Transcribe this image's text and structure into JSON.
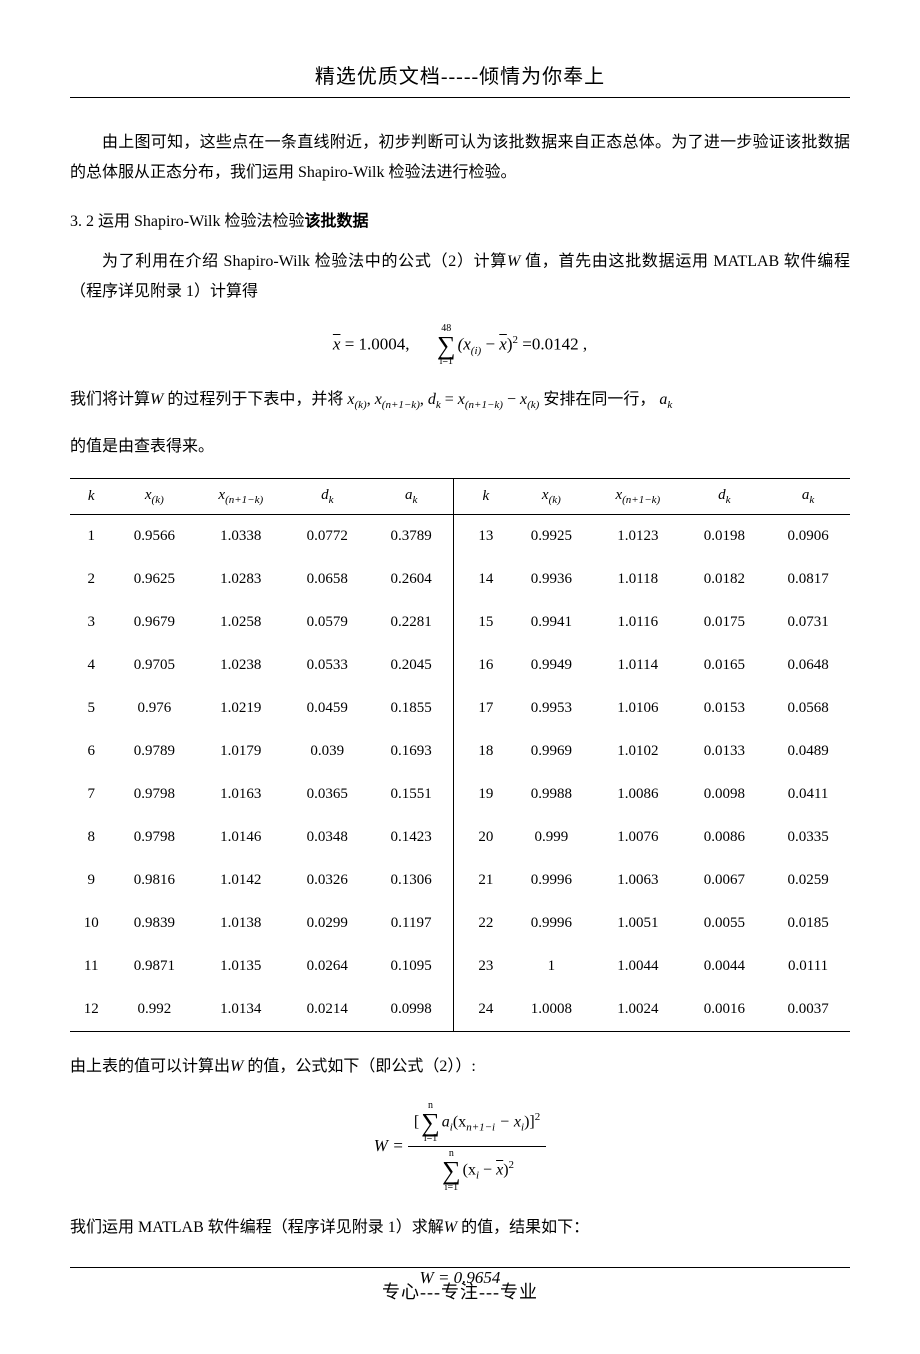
{
  "header": "精选优质文档-----倾情为你奉上",
  "footer": "专心---专注---专业",
  "para1": "由上图可知，这些点在一条直线附近，初步判断可认为该批数据来自正态总体。为了进一步验证该批数据的总体服从正态分布，我们运用 Shapiro-Wilk 检验法进行检验。",
  "section_num": "3. 2 ",
  "section_plain": "运用 Shapiro-Wilk 检验法检验",
  "section_bold": "该批数据",
  "para2a": "为了利用在介绍 Shapiro-Wilk 检验法中的公式（2）计算",
  "sym_W": "W",
  "para2b": " 值，首先由这批数据运用 MATLAB 软件编程（程序详见附录 1）计算得",
  "formula1": {
    "xbar_label": "x",
    "xbar_val": " = 1.0004,",
    "sum_upper": "48",
    "sum_lower": "i=1",
    "sum_body_open": "(x",
    "sum_body_sub": "(i)",
    "sum_body_mid": " − ",
    "sum_body_xbar": "x",
    "sum_body_close": ")",
    "sum_body_sup": "2",
    "eq_val": " =0.0142 ,"
  },
  "para3a": "我们将计算",
  "para3b": " 的过程列于下表中，并将 ",
  "inline_seq": {
    "x_k": "x",
    "x_k_sub": "(k)",
    "comma1": ", ",
    "x_n1k": "x",
    "x_n1k_sub": "(n+1−k)",
    "comma2": ", ",
    "d_k": "d",
    "d_k_sub": "k",
    "eq": " = ",
    "x_n1k2": "x",
    "x_n1k2_sub": "(n+1−k)",
    "minus": " − ",
    "x_k2": "x",
    "x_k2_sub": "(k)"
  },
  "para3c": " 安排在同一行，  ",
  "a_k": "a",
  "a_k_sub": "k",
  "para3d": "的值是由查表得来。",
  "table": {
    "headers": {
      "k": "k",
      "xk": "x",
      "xk_sub": "(k)",
      "xn1k": "x",
      "xn1k_sub": "(n+1−k)",
      "dk": "d",
      "dk_sub": "k",
      "ak": "a",
      "ak_sub": "k"
    },
    "left": [
      {
        "k": "1",
        "xk": "0.9566",
        "xn": "1.0338",
        "dk": "0.0772",
        "ak": "0.3789"
      },
      {
        "k": "2",
        "xk": "0.9625",
        "xn": "1.0283",
        "dk": "0.0658",
        "ak": "0.2604"
      },
      {
        "k": "3",
        "xk": "0.9679",
        "xn": "1.0258",
        "dk": "0.0579",
        "ak": "0.2281"
      },
      {
        "k": "4",
        "xk": "0.9705",
        "xn": "1.0238",
        "dk": "0.0533",
        "ak": "0.2045"
      },
      {
        "k": "5",
        "xk": "0.976",
        "xn": "1.0219",
        "dk": "0.0459",
        "ak": "0.1855"
      },
      {
        "k": "6",
        "xk": "0.9789",
        "xn": "1.0179",
        "dk": "0.039",
        "ak": "0.1693"
      },
      {
        "k": "7",
        "xk": "0.9798",
        "xn": "1.0163",
        "dk": "0.0365",
        "ak": "0.1551"
      },
      {
        "k": "8",
        "xk": "0.9798",
        "xn": "1.0146",
        "dk": "0.0348",
        "ak": "0.1423"
      },
      {
        "k": "9",
        "xk": "0.9816",
        "xn": "1.0142",
        "dk": "0.0326",
        "ak": "0.1306"
      },
      {
        "k": "10",
        "xk": "0.9839",
        "xn": "1.0138",
        "dk": "0.0299",
        "ak": "0.1197"
      },
      {
        "k": "11",
        "xk": "0.9871",
        "xn": "1.0135",
        "dk": "0.0264",
        "ak": "0.1095"
      },
      {
        "k": "12",
        "xk": "0.992",
        "xn": "1.0134",
        "dk": "0.0214",
        "ak": "0.0998"
      }
    ],
    "right": [
      {
        "k": "13",
        "xk": "0.9925",
        "xn": "1.0123",
        "dk": "0.0198",
        "ak": "0.0906"
      },
      {
        "k": "14",
        "xk": "0.9936",
        "xn": "1.0118",
        "dk": "0.0182",
        "ak": "0.0817"
      },
      {
        "k": "15",
        "xk": "0.9941",
        "xn": "1.0116",
        "dk": "0.0175",
        "ak": "0.0731"
      },
      {
        "k": "16",
        "xk": "0.9949",
        "xn": "1.0114",
        "dk": "0.0165",
        "ak": "0.0648"
      },
      {
        "k": "17",
        "xk": "0.9953",
        "xn": "1.0106",
        "dk": "0.0153",
        "ak": "0.0568"
      },
      {
        "k": "18",
        "xk": "0.9969",
        "xn": "1.0102",
        "dk": "0.0133",
        "ak": "0.0489"
      },
      {
        "k": "19",
        "xk": "0.9988",
        "xn": "1.0086",
        "dk": "0.0098",
        "ak": "0.0411"
      },
      {
        "k": "20",
        "xk": "0.999",
        "xn": "1.0076",
        "dk": "0.0086",
        "ak": "0.0335"
      },
      {
        "k": "21",
        "xk": "0.9996",
        "xn": "1.0063",
        "dk": "0.0067",
        "ak": "0.0259"
      },
      {
        "k": "22",
        "xk": "0.9996",
        "xn": "1.0051",
        "dk": "0.0055",
        "ak": "0.0185"
      },
      {
        "k": "23",
        "xk": "1",
        "xn": "1.0044",
        "dk": "0.0044",
        "ak": "0.0111"
      },
      {
        "k": "24",
        "xk": "1.0008",
        "xn": "1.0024",
        "dk": "0.0016",
        "ak": "0.0037"
      }
    ]
  },
  "para4a": "由上表的值可以计算出",
  "para4b": " 的值，公式如下（即公式（2））:",
  "formula2": {
    "lhs": "W = ",
    "num_open": "[",
    "num_sum_upper": "n",
    "num_sum_lower": "i=1",
    "num_body_a": "a",
    "num_body_a_sub": "i",
    "num_body_open": "(x",
    "num_body_x1_sub": "n+1−i",
    "num_body_minus": " − x",
    "num_body_x2_sub": "i",
    "num_body_close": ")]",
    "num_sup": "2",
    "den_sum_upper": "n",
    "den_sum_lower": "i=1",
    "den_open": "(x",
    "den_x_sub": "i",
    "den_minus": " − ",
    "den_xbar": "x",
    "den_close": ")",
    "den_sup": "2"
  },
  "para5a": "我们运用 MATLAB 软件编程（程序详见附录 1）求解",
  "para5b": " 的值，结果如下：",
  "formula3": "W = 0.9654"
}
